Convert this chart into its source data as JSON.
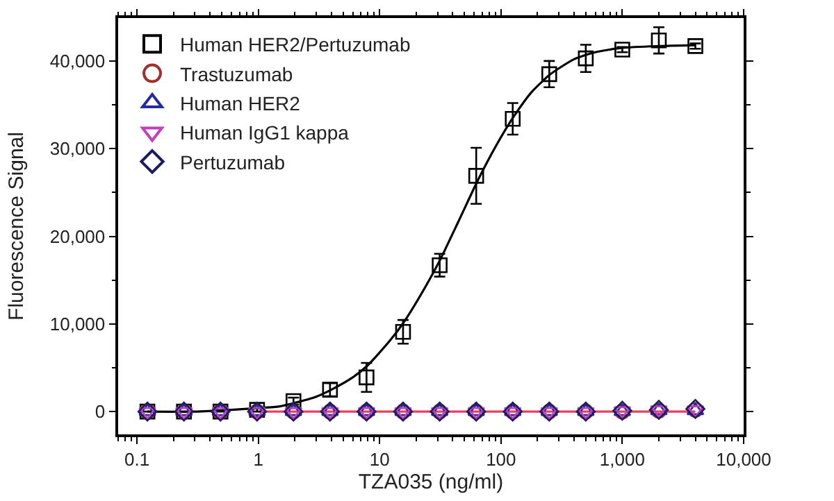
{
  "chart_data": {
    "type": "scatter",
    "xlabel": "TZA035 (ng/ml)",
    "ylabel": "Fluorescence Signal",
    "log": "x",
    "legend": "top left",
    "xlim": [
      0.07,
      10000
    ],
    "xticks": [
      {
        "value": 0.1,
        "label": "0.1"
      },
      1,
      10,
      100,
      {
        "value": 1000,
        "label": "1,000"
      },
      {
        "value": 10000,
        "label": "10,000"
      }
    ],
    "ylim": [
      -2600,
      44900
    ],
    "yticks": [
      0,
      {
        "value": 10000,
        "label": "10,000"
      },
      {
        "value": 20000,
        "label": "20,000"
      },
      {
        "value": 30000,
        "label": "30,000"
      },
      {
        "value": 40000,
        "label": "40,000"
      }
    ],
    "x": [
      0.122,
      0.244,
      0.488,
      0.977,
      1.95,
      3.9,
      7.8,
      15.6,
      31.25,
      62.5,
      125,
      250,
      500,
      1000,
      2000,
      4000
    ],
    "series": [
      {
        "type": "line",
        "color": "#000000",
        "marker": "none",
        "x": [
          0.122,
          0.3,
          0.6,
          1,
          1.5,
          2,
          3,
          4,
          6,
          8,
          12,
          16,
          24,
          32,
          45,
          64,
          90,
          128,
          180,
          256,
          400,
          600,
          1000,
          2000,
          4000
        ],
        "values": [
          0,
          0,
          200,
          400,
          600,
          1000,
          1700,
          2500,
          3900,
          5300,
          8000,
          10300,
          14300,
          17500,
          21800,
          26300,
          30200,
          33700,
          36500,
          38500,
          40200,
          41000,
          41500,
          41700,
          41800
        ]
      },
      {
        "type": "line",
        "color": "#e8405a",
        "marker": "none",
        "x": [
          1,
          4000
        ],
        "values": [
          0,
          0
        ]
      },
      {
        "name": "Human HER2/Pertuzumab",
        "color": "#000000",
        "marker": "square",
        "values": [
          0,
          0,
          0,
          200,
          1200,
          2500,
          3900,
          9100,
          16700,
          26900,
          33400,
          38500,
          40300,
          41300,
          42350,
          41700
        ],
        "errors": [
          null,
          null,
          null,
          200,
          400,
          750,
          1650,
          1350,
          1300,
          3200,
          1800,
          1500,
          1550,
          300,
          1500,
          300
        ]
      },
      {
        "name": "Trastuzumab",
        "color": "#a03030",
        "marker": "circle",
        "values": [
          0,
          0,
          0,
          0,
          0,
          0,
          0,
          0,
          0,
          0,
          0,
          0,
          0,
          0,
          100,
          200
        ]
      },
      {
        "name": "Human HER2",
        "color": "#2828a0",
        "marker": "triangle",
        "values": [
          0,
          0,
          0,
          0,
          0,
          0,
          0,
          0,
          0,
          0,
          0,
          0,
          0,
          0,
          100,
          100
        ]
      },
      {
        "name": "Human IgG1 kappa",
        "color": "#c040c0",
        "marker": "triangle-down",
        "values": [
          0,
          0,
          0,
          0,
          0,
          0,
          0,
          0,
          0,
          0,
          0,
          0,
          0,
          100,
          200,
          200
        ]
      },
      {
        "name": "Pertuzumab",
        "color": "#1c1c5c",
        "marker": "diamond",
        "values": [
          0,
          0,
          0,
          0,
          0,
          0,
          0,
          0,
          0,
          0,
          0,
          0,
          0,
          100,
          200,
          300
        ]
      }
    ]
  }
}
